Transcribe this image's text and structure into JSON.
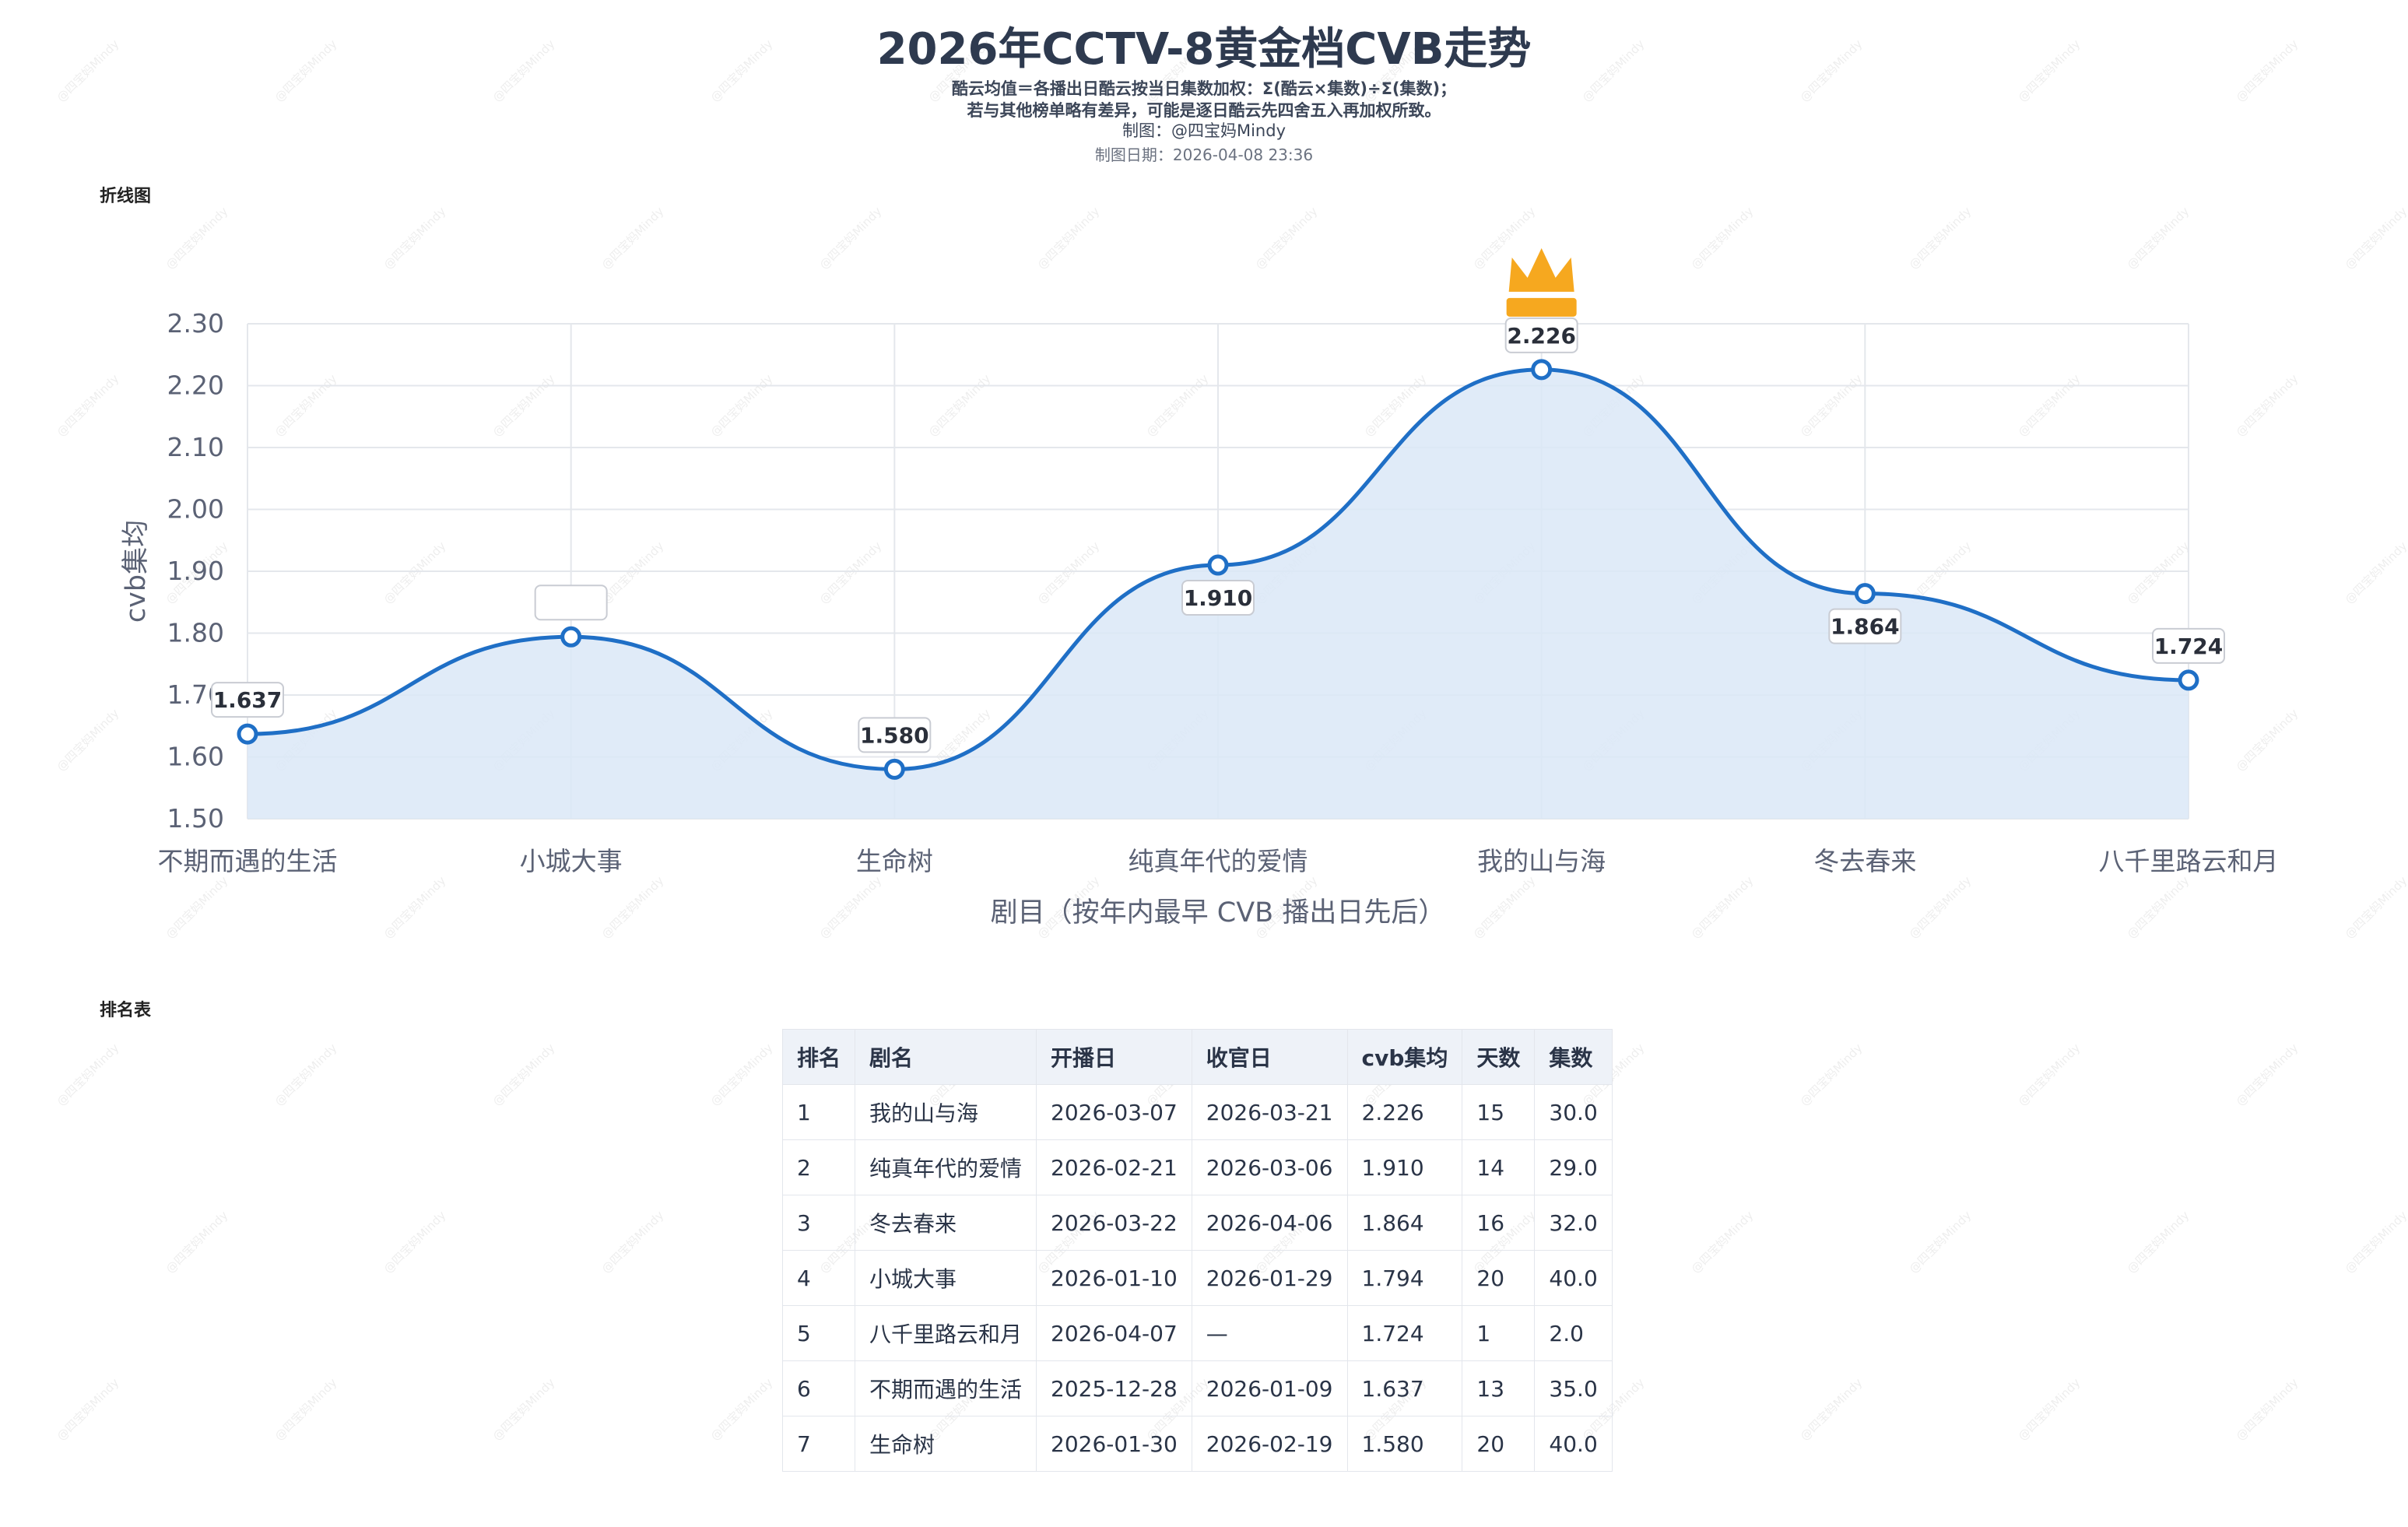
{
  "header": {
    "title": "2026年CCTV-8黄金档CVB走势",
    "note1": "酷云均值＝各播出日酷云按当日集数加权：Σ(酷云×集数)÷Σ(集数)；",
    "note2": "若与其他榜单略有差异，可能是逐日酷云先四舍五入再加权所致。",
    "credit": "制图：@四宝妈Mindy",
    "date": "制图日期：2026-04-08 23:36"
  },
  "sections": {
    "chart_label": "折线图",
    "table_label": "排名表"
  },
  "watermark": "@四宝妈Mindy",
  "colors": {
    "line": "#1f6fc6",
    "fill": "#dbe8f7",
    "crown": "#f6a81f",
    "grid": "#e4e7ec"
  },
  "chart_data": {
    "type": "line",
    "categories": [
      "不期而遇的生活",
      "小城大事",
      "生命树",
      "纯真年代的爱情",
      "我的山与海",
      "冬去春来",
      "八千里路云和月"
    ],
    "series": [
      {
        "values": [
          1.637,
          1.794,
          1.58,
          1.91,
          2.226,
          1.864,
          1.724
        ]
      }
    ],
    "data_labels": [
      "1.637",
      "",
      "1.580",
      "1.910",
      "2.226",
      "1.864",
      "1.724"
    ],
    "xlabel": "剧目（按年内最早 CVB 播出日先后）",
    "ylabel": "cvb集均",
    "ylim": [
      1.5,
      2.3
    ],
    "yticks": [
      "1.50",
      "1.60",
      "1.70",
      "1.80",
      "1.90",
      "2.00",
      "2.10",
      "2.20",
      "2.30"
    ],
    "grid": true,
    "area_fill": true,
    "highlight": "max-crown"
  },
  "table": {
    "headers": [
      "排名",
      "剧名",
      "开播日",
      "收官日",
      "cvb集均",
      "天数",
      "集数"
    ],
    "rows": [
      [
        "1",
        "我的山与海",
        "2026-03-07",
        "2026-03-21",
        "2.226",
        "15",
        "30.0"
      ],
      [
        "2",
        "纯真年代的爱情",
        "2026-02-21",
        "2026-03-06",
        "1.910",
        "14",
        "29.0"
      ],
      [
        "3",
        "冬去春来",
        "2026-03-22",
        "2026-04-06",
        "1.864",
        "16",
        "32.0"
      ],
      [
        "4",
        "小城大事",
        "2026-01-10",
        "2026-01-29",
        "1.794",
        "20",
        "40.0"
      ],
      [
        "5",
        "八千里路云和月",
        "2026-04-07",
        "—",
        "1.724",
        "1",
        "2.0"
      ],
      [
        "6",
        "不期而遇的生活",
        "2025-12-28",
        "2026-01-09",
        "1.637",
        "13",
        "35.0"
      ],
      [
        "7",
        "生命树",
        "2026-01-30",
        "2026-02-19",
        "1.580",
        "20",
        "40.0"
      ]
    ]
  }
}
